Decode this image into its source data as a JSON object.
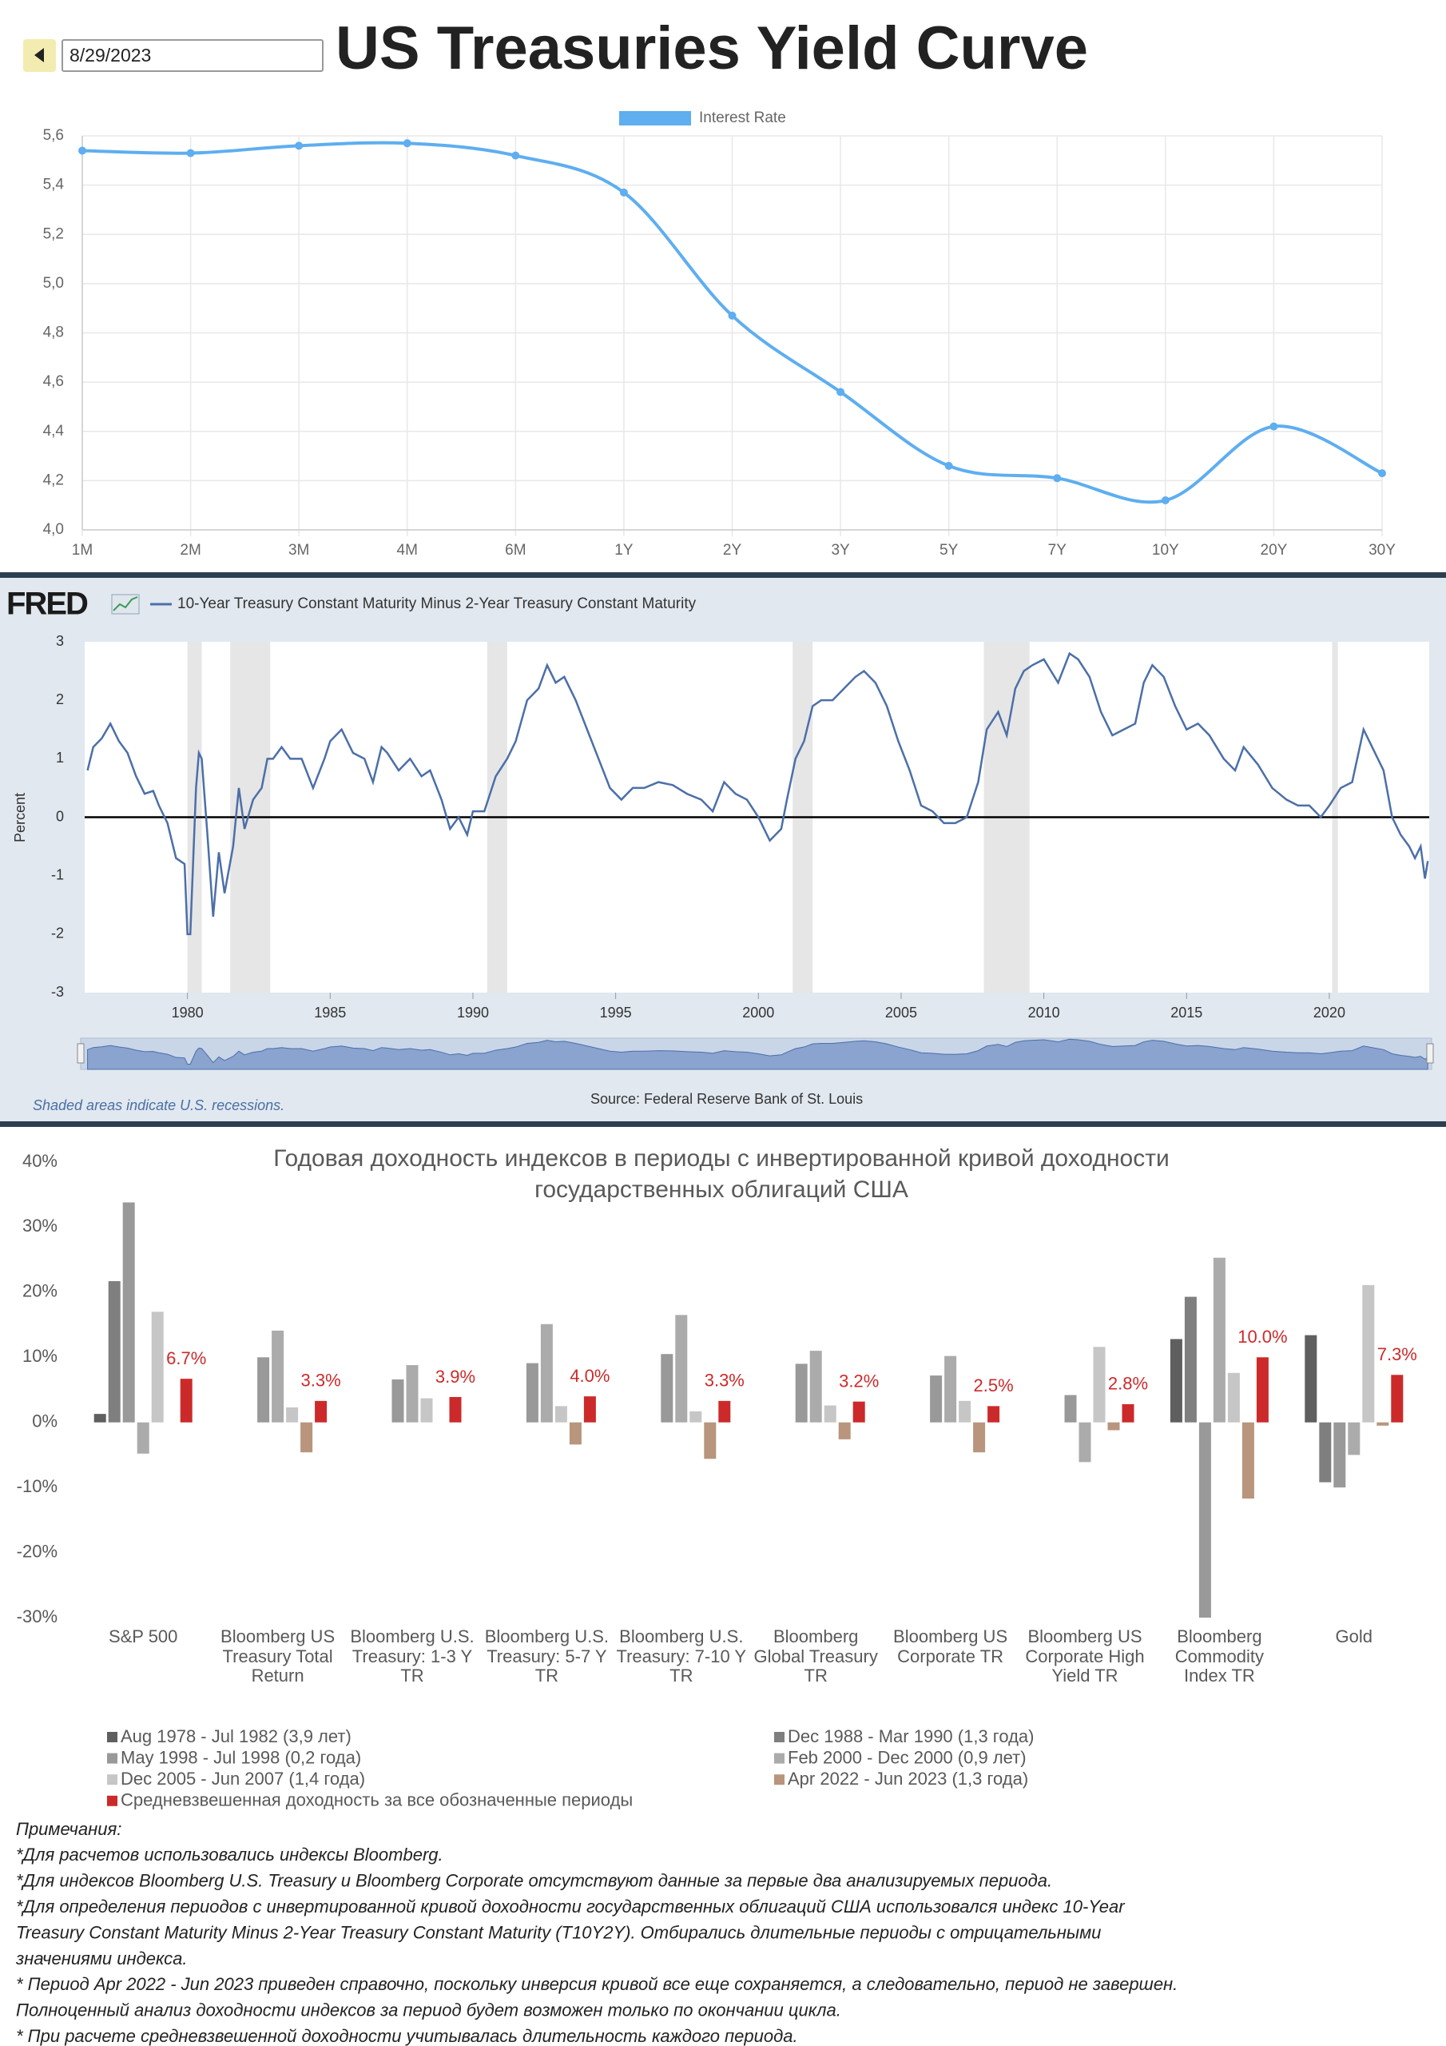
{
  "date": "8/29/2023",
  "chart_data": [
    {
      "type": "line",
      "title": "US Treasuries Yield Curve",
      "categories": [
        "1M",
        "2M",
        "3M",
        "4M",
        "6M",
        "1Y",
        "2Y",
        "3Y",
        "5Y",
        "7Y",
        "10Y",
        "20Y",
        "30Y"
      ],
      "series": [
        {
          "name": "Interest Rate",
          "color": "#5eaef0",
          "values": [
            5.54,
            5.53,
            5.56,
            5.57,
            5.52,
            5.37,
            4.87,
            4.56,
            4.26,
            4.21,
            4.12,
            4.42,
            4.23
          ]
        }
      ],
      "ylim": [
        4.0,
        5.6
      ],
      "yticks": [
        {
          "value": 4.0,
          "label": "4,0"
        },
        {
          "value": 4.2,
          "label": "4,2"
        },
        {
          "value": 4.4,
          "label": "4,4"
        },
        {
          "value": 4.6,
          "label": "4,6"
        },
        {
          "value": 4.8,
          "label": "4,8"
        },
        {
          "value": 5.0,
          "label": "5,0"
        },
        {
          "value": 5.2,
          "label": "5,2"
        },
        {
          "value": 5.4,
          "label": "5,4"
        },
        {
          "value": 5.6,
          "label": "5,6"
        }
      ],
      "grid": true,
      "legend": "top"
    },
    {
      "type": "line",
      "logo": "FRED",
      "ylabel": "Percent",
      "note": "Shaded areas indicate U.S. recessions.",
      "source": "Source: Federal Reserve Bank of St. Louis",
      "x": [
        1976.5,
        1976.7,
        1977.0,
        1977.3,
        1977.6,
        1977.9,
        1978.2,
        1978.5,
        1978.8,
        1979.0,
        1979.3,
        1979.6,
        1979.9,
        1980.0,
        1980.1,
        1980.3,
        1980.4,
        1980.5,
        1980.7,
        1980.9,
        1981.1,
        1981.3,
        1981.6,
        1981.8,
        1982.0,
        1982.3,
        1982.6,
        1982.8,
        1983.0,
        1983.3,
        1983.6,
        1984.0,
        1984.4,
        1984.8,
        1985.0,
        1985.4,
        1985.8,
        1986.2,
        1986.5,
        1986.8,
        1987.0,
        1987.4,
        1987.8,
        1988.2,
        1988.5,
        1988.9,
        1989.2,
        1989.5,
        1989.8,
        1990.0,
        1990.4,
        1990.8,
        1991.2,
        1991.5,
        1991.9,
        1992.3,
        1992.6,
        1992.9,
        1993.2,
        1993.6,
        1994.0,
        1994.4,
        1994.8,
        1995.2,
        1995.6,
        1996.0,
        1996.5,
        1997.0,
        1997.5,
        1998.0,
        1998.4,
        1998.8,
        1999.2,
        1999.6,
        2000.0,
        2000.4,
        2000.8,
        2001.0,
        2001.3,
        2001.6,
        2001.9,
        2002.2,
        2002.6,
        2003.0,
        2003.4,
        2003.7,
        2004.1,
        2004.5,
        2004.9,
        2005.3,
        2005.7,
        2006.1,
        2006.5,
        2006.9,
        2007.3,
        2007.7,
        2008.0,
        2008.4,
        2008.7,
        2009.0,
        2009.3,
        2009.6,
        2010.0,
        2010.5,
        2010.9,
        2011.2,
        2011.6,
        2012.0,
        2012.4,
        2012.8,
        2013.2,
        2013.5,
        2013.8,
        2014.2,
        2014.6,
        2015.0,
        2015.4,
        2015.8,
        2016.3,
        2016.7,
        2017.0,
        2017.5,
        2018.0,
        2018.5,
        2018.9,
        2019.3,
        2019.7,
        2020.0,
        2020.4,
        2020.8,
        2021.2,
        2021.5,
        2021.9,
        2022.2,
        2022.5,
        2022.8,
        2023.0,
        2023.2,
        2023.35,
        2023.45
      ],
      "series": [
        {
          "name": "10-Year Treasury Constant Maturity Minus 2-Year Treasury Constant Maturity",
          "color": "#4c6fa8",
          "values": [
            0.8,
            1.2,
            1.35,
            1.6,
            1.3,
            1.1,
            0.7,
            0.4,
            0.45,
            0.2,
            -0.1,
            -0.7,
            -0.8,
            -2.0,
            -2.0,
            0.5,
            1.1,
            1.0,
            -0.3,
            -1.7,
            -0.6,
            -1.3,
            -0.5,
            0.5,
            -0.2,
            0.3,
            0.5,
            1.0,
            1.0,
            1.2,
            1.0,
            1.0,
            0.5,
            1.0,
            1.3,
            1.5,
            1.1,
            1.0,
            0.6,
            1.2,
            1.1,
            0.8,
            1.0,
            0.7,
            0.8,
            0.3,
            -0.2,
            0.0,
            -0.3,
            0.1,
            0.1,
            0.7,
            1.0,
            1.3,
            2.0,
            2.2,
            2.6,
            2.3,
            2.4,
            2.0,
            1.5,
            1.0,
            0.5,
            0.3,
            0.5,
            0.5,
            0.6,
            0.55,
            0.4,
            0.3,
            0.1,
            0.6,
            0.4,
            0.3,
            0.0,
            -0.4,
            -0.2,
            0.3,
            1.0,
            1.3,
            1.9,
            2.0,
            2.0,
            2.2,
            2.4,
            2.5,
            2.3,
            1.9,
            1.3,
            0.8,
            0.2,
            0.1,
            -0.1,
            -0.1,
            0.0,
            0.6,
            1.5,
            1.8,
            1.4,
            2.2,
            2.5,
            2.6,
            2.7,
            2.3,
            2.8,
            2.7,
            2.4,
            1.8,
            1.4,
            1.5,
            1.6,
            2.3,
            2.6,
            2.4,
            1.9,
            1.5,
            1.6,
            1.4,
            1.0,
            0.8,
            1.2,
            0.9,
            0.5,
            0.3,
            0.2,
            0.2,
            0.0,
            0.2,
            0.5,
            0.6,
            1.5,
            1.2,
            0.8,
            0.0,
            -0.3,
            -0.5,
            -0.7,
            -0.5,
            -1.05,
            -0.75
          ]
        }
      ],
      "recessions": [
        [
          1980.0,
          1980.5
        ],
        [
          1981.5,
          1982.9
        ],
        [
          1990.5,
          1991.2
        ],
        [
          2001.2,
          2001.9
        ],
        [
          2007.9,
          2009.5
        ],
        [
          2020.1,
          2020.3
        ]
      ],
      "xlim": [
        1976.4,
        2023.5
      ],
      "xticks": [
        1980,
        1985,
        1990,
        1995,
        2000,
        2005,
        2010,
        2015,
        2020
      ],
      "ylim": [
        -3,
        3
      ],
      "yticks": [
        -3,
        -2,
        -1,
        0,
        1,
        2,
        3
      ],
      "legend": "top"
    },
    {
      "type": "bar",
      "title": [
        "Годовая доходность индексов в периоды с инвертированной кривой доходности",
        "государственных облигаций США"
      ],
      "categories": [
        "S&P 500",
        "Bloomberg US Treasury Total Return",
        "Bloomberg U.S. Treasury: 1-3 Y TR",
        "Bloomberg U.S. Treasury: 5-7 Y TR",
        "Bloomberg U.S. Treasury: 7-10 Y TR",
        "Bloomberg Global Treasury TR",
        "Bloomberg US Corporate TR",
        "Bloomberg US Corporate High Yield TR",
        "Bloomberg Commodity Index TR",
        "Gold"
      ],
      "series": [
        {
          "name": "Aug 1978 - Jul 1982 (3,9 лет)",
          "color": "#5f5f5f",
          "values": [
            1.3,
            null,
            null,
            null,
            null,
            null,
            null,
            null,
            12.8,
            13.4
          ]
        },
        {
          "name": "Dec 1988 - Mar 1990 (1,3 года)",
          "color": "#7f7f7f",
          "values": [
            21.7,
            null,
            null,
            null,
            null,
            null,
            null,
            null,
            19.3,
            -9.2
          ]
        },
        {
          "name": "May 1998 - Jul 1998 (0,2 года)",
          "color": "#999999",
          "values": [
            33.8,
            10.0,
            6.6,
            9.1,
            10.5,
            9.0,
            7.2,
            4.2,
            -30,
            -10
          ]
        },
        {
          "name": "Feb 2000 - Dec 2000 (0,9 лет)",
          "color": "#ababab",
          "values": [
            -4.8,
            14.1,
            8.8,
            15.1,
            16.5,
            11.0,
            10.2,
            -6.1,
            25.3,
            -5
          ]
        },
        {
          "name": "Dec 2005 - Jun 2007 (1,4 года)",
          "color": "#c6c6c6",
          "values": [
            17.0,
            2.3,
            3.7,
            2.5,
            1.7,
            2.6,
            3.3,
            11.6,
            7.6,
            21.1
          ]
        },
        {
          "name": "Apr 2022 - Jun 2023 (1,3 года)",
          "color": "#b8957c",
          "values": [
            null,
            -4.6,
            null,
            -3.4,
            -5.6,
            -2.6,
            -4.6,
            -1.2,
            -11.7,
            -0.5
          ]
        },
        {
          "name": "Средневзвешенная доходность за все обозначенные периоды",
          "color": "#cc2a2a",
          "values": [
            6.7,
            3.3,
            3.9,
            4.0,
            3.3,
            3.2,
            2.5,
            2.8,
            10.0,
            7.3
          ],
          "value_labels": [
            "6.7%",
            "3.3%",
            "3.9%",
            "4.0%",
            "3.3%",
            "3.2%",
            "2.5%",
            "2.8%",
            "10.0%",
            "7.3%"
          ]
        }
      ],
      "ylim": [
        -30,
        40
      ],
      "yticks": [
        {
          "value": -30,
          "label": "-30%"
        },
        {
          "value": -20,
          "label": "-20%"
        },
        {
          "value": -10,
          "label": "-10%"
        },
        {
          "value": 0,
          "label": "0%"
        },
        {
          "value": 10,
          "label": "10%"
        },
        {
          "value": 20,
          "label": "20%"
        },
        {
          "value": 30,
          "label": "30%"
        },
        {
          "value": 40,
          "label": "40%"
        }
      ],
      "grid": false,
      "legend": "bottom"
    }
  ],
  "notes": [
    "Примечания:",
    "*Для расчетов использовались индексы Bloomberg.",
    "*Для индексов Bloomberg U.S. Treasury и Bloomberg Corporate отсутствуют данные за первые два анализируемых периода.",
    "*Для определения периодов с инвертированной кривой доходности государственных облигаций США использовался индекс 10-Year",
    "Treasury Constant Maturity Minus 2-Year Treasury Constant Maturity (T10Y2Y). Отбирались длительные периоды с отрицательными",
    "значениями индекса.",
    "* Период Apr 2022 - Jun 2023 приведен справочно, поскольку инверсия кривой все еще сохраняется, а следовательно, период не завершен.",
    "Полноценный анализ доходности индексов за период будет возможен только по окончании цикла.",
    "* При расчете средневзвешенной доходности учитывалась длительность каждого периода."
  ]
}
